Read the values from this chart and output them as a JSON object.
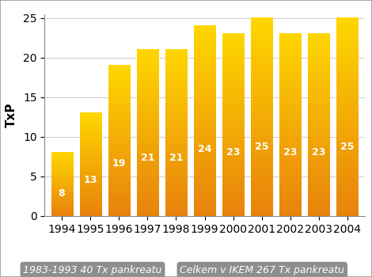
{
  "title": "TxP",
  "years": [
    1994,
    1995,
    1996,
    1997,
    1998,
    1999,
    2000,
    2001,
    2002,
    2003,
    2004
  ],
  "values": [
    8,
    13,
    19,
    21,
    21,
    24,
    23,
    25,
    23,
    23,
    25
  ],
  "ylim": [
    0,
    25
  ],
  "yticks": [
    0,
    5,
    10,
    15,
    20,
    25
  ],
  "bar_color_top": "#FFD700",
  "bar_color_bottom": "#E8820C",
  "label1": "1983-1993 40 Tx pankreatu",
  "label2": "Celkem v IKEM 267 Tx pankreatu",
  "label_bg_color": "#7a7a7a",
  "label_text_color": "#ffffff",
  "value_label_color": "#ffffff",
  "box_border_color": "#999999",
  "background_color": "#ffffff",
  "chart_bg_color": "#ffffff",
  "value_fontsize": 9,
  "axis_label_fontsize": 11,
  "tick_fontsize": 10,
  "legend_fontsize": 9
}
